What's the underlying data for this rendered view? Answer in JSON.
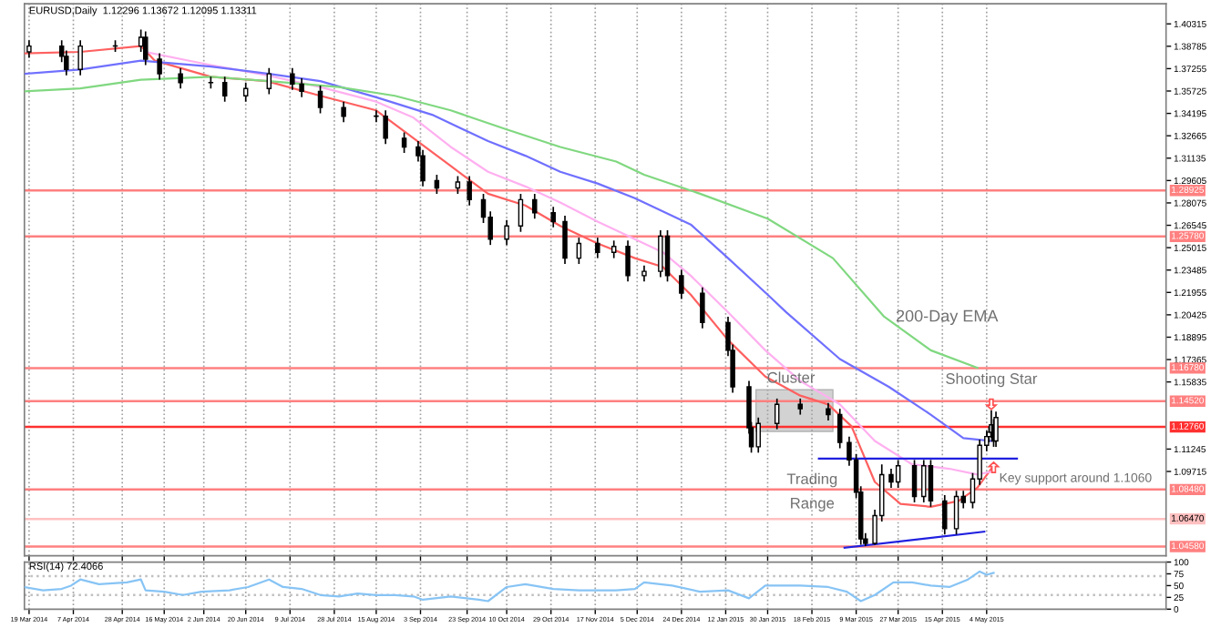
{
  "chart_data": [
    {
      "type": "candlestick",
      "title": "EURUSD,Daily  1.12296 1.13672 1.12095 1.13311",
      "tick_labels": "y",
      "grid": "x",
      "x": [
        "2014-03-19",
        "2014-04-02",
        "2014-04-04",
        "2014-04-10",
        "2014-04-25",
        "2014-05-06",
        "2014-05-08",
        "2014-05-14",
        "2014-05-23",
        "2014-06-05",
        "2014-06-11",
        "2014-06-20",
        "2014-06-30",
        "2014-07-10",
        "2014-07-14",
        "2014-07-22",
        "2014-08-01",
        "2014-08-15",
        "2014-08-19",
        "2014-08-27",
        "2014-09-02",
        "2014-09-04",
        "2014-09-10",
        "2014-09-19",
        "2014-09-24",
        "2014-09-30",
        "2014-10-03",
        "2014-10-10",
        "2014-10-16",
        "2014-10-22",
        "2014-10-30",
        "2014-11-04",
        "2014-11-10",
        "2014-11-18",
        "2014-11-25",
        "2014-12-01",
        "2014-12-08",
        "2014-12-15",
        "2014-12-18",
        "2014-12-24",
        "2015-01-02",
        "2015-01-13",
        "2015-01-15",
        "2015-01-22",
        "2015-01-23",
        "2015-01-26",
        "2015-02-03",
        "2015-02-13",
        "2015-02-25",
        "2015-03-02",
        "2015-03-06",
        "2015-03-09",
        "2015-03-11",
        "2015-03-13",
        "2015-03-17",
        "2015-03-20",
        "2015-03-24",
        "2015-03-27",
        "2015-04-03",
        "2015-04-07",
        "2015-04-10",
        "2015-04-16",
        "2015-04-21",
        "2015-04-24",
        "2015-04-28",
        "2015-05-01",
        "2015-05-04",
        "2015-05-05",
        "2015-05-06",
        "2015-05-07",
        "2015-05-08"
      ],
      "ohlc": [
        [
          1.384,
          1.392,
          1.38,
          1.388
        ],
        [
          1.388,
          1.392,
          1.377,
          1.381
        ],
        [
          1.381,
          1.385,
          1.368,
          1.372
        ],
        [
          1.372,
          1.392,
          1.368,
          1.388
        ],
        [
          1.388,
          1.392,
          1.384,
          1.388
        ],
        [
          1.388,
          1.3993,
          1.384,
          1.394
        ],
        [
          1.394,
          1.398,
          1.375,
          1.379
        ],
        [
          1.379,
          1.383,
          1.365,
          1.369
        ],
        [
          1.369,
          1.373,
          1.359,
          1.363
        ],
        [
          1.363,
          1.367,
          1.359,
          1.363
        ],
        [
          1.363,
          1.367,
          1.35,
          1.354
        ],
        [
          1.354,
          1.363,
          1.35,
          1.359
        ],
        [
          1.359,
          1.373,
          1.355,
          1.369
        ],
        [
          1.369,
          1.373,
          1.358,
          1.362
        ],
        [
          1.362,
          1.366,
          1.353,
          1.357
        ],
        [
          1.357,
          1.361,
          1.342,
          1.346
        ],
        [
          1.346,
          1.35,
          1.336,
          1.34
        ],
        [
          1.34,
          1.344,
          1.336,
          1.34
        ],
        [
          1.34,
          1.344,
          1.321,
          1.325
        ],
        [
          1.325,
          1.329,
          1.315,
          1.319
        ],
        [
          1.319,
          1.323,
          1.309,
          1.313
        ],
        [
          1.313,
          1.317,
          1.292,
          1.296
        ],
        [
          1.296,
          1.3,
          1.287,
          1.291
        ],
        [
          1.291,
          1.299,
          1.287,
          1.295
        ],
        [
          1.295,
          1.299,
          1.279,
          1.283
        ],
        [
          1.283,
          1.287,
          1.267,
          1.271
        ],
        [
          1.271,
          1.275,
          1.252,
          1.256
        ],
        [
          1.256,
          1.269,
          1.252,
          1.265
        ],
        [
          1.265,
          1.287,
          1.261,
          1.283
        ],
        [
          1.283,
          1.287,
          1.27,
          1.274
        ],
        [
          1.274,
          1.278,
          1.264,
          1.268
        ],
        [
          1.268,
          1.272,
          1.239,
          1.243
        ],
        [
          1.243,
          1.257,
          1.239,
          1.253
        ],
        [
          1.253,
          1.257,
          1.243,
          1.247
        ],
        [
          1.247,
          1.255,
          1.243,
          1.251
        ],
        [
          1.251,
          1.255,
          1.227,
          1.231
        ],
        [
          1.231,
          1.238,
          1.227,
          1.234
        ],
        [
          1.234,
          1.262,
          1.23,
          1.258
        ],
        [
          1.258,
          1.262,
          1.227,
          1.231
        ],
        [
          1.231,
          1.235,
          1.215,
          1.219
        ],
        [
          1.219,
          1.223,
          1.195,
          1.199
        ],
        [
          1.199,
          1.203,
          1.176,
          1.18
        ],
        [
          1.18,
          1.184,
          1.151,
          1.155
        ],
        [
          1.155,
          1.159,
          1.123,
          1.127
        ],
        [
          1.127,
          1.131,
          1.11,
          1.114
        ],
        [
          1.114,
          1.134,
          1.11,
          1.13
        ],
        [
          1.13,
          1.147,
          1.126,
          1.143
        ],
        [
          1.143,
          1.147,
          1.136,
          1.14
        ],
        [
          1.14,
          1.144,
          1.132,
          1.136
        ],
        [
          1.136,
          1.14,
          1.113,
          1.117
        ],
        [
          1.117,
          1.121,
          1.101,
          1.105
        ],
        [
          1.105,
          1.109,
          1.079,
          1.083
        ],
        [
          1.083,
          1.087,
          1.047,
          1.051
        ],
        [
          1.051,
          1.055,
          1.0462,
          1.048
        ],
        [
          1.048,
          1.071,
          1.047,
          1.067
        ],
        [
          1.067,
          1.102,
          1.063,
          1.095
        ],
        [
          1.095,
          1.099,
          1.086,
          1.09
        ],
        [
          1.09,
          1.105,
          1.086,
          1.101
        ],
        [
          1.101,
          1.105,
          1.076,
          1.08
        ],
        [
          1.08,
          1.105,
          1.076,
          1.101
        ],
        [
          1.101,
          1.105,
          1.073,
          1.077
        ],
        [
          1.077,
          1.081,
          1.054,
          1.058
        ],
        [
          1.058,
          1.084,
          1.054,
          1.08
        ],
        [
          1.08,
          1.084,
          1.072,
          1.076
        ],
        [
          1.076,
          1.096,
          1.072,
          1.092
        ],
        [
          1.092,
          1.119,
          1.088,
          1.115
        ],
        [
          1.115,
          1.125,
          1.111,
          1.121
        ],
        [
          1.121,
          1.128,
          1.117,
          1.124
        ],
        [
          1.124,
          1.139,
          1.12,
          1.129
        ],
        [
          1.129,
          1.133,
          1.114,
          1.118
        ],
        [
          1.118,
          1.138,
          1.114,
          1.134
        ]
      ],
      "series": [
        {
          "type": "line",
          "color": "#ff6060",
          "x": [
            "2014-03-17",
            "2014-04-10",
            "2014-05-06",
            "2014-05-12",
            "2014-06-05",
            "2014-06-29",
            "2014-07-22",
            "2014-08-15",
            "2014-08-31",
            "2014-09-16",
            "2014-10-02",
            "2014-10-18",
            "2014-11-02",
            "2014-11-18",
            "2014-12-04",
            "2014-12-16",
            "2014-12-28",
            "2015-01-13",
            "2015-01-29",
            "2015-02-13",
            "2015-02-25",
            "2015-03-07",
            "2015-03-17",
            "2015-03-28",
            "2015-04-10",
            "2015-04-22",
            "2015-04-30",
            "2015-05-06"
          ],
          "values": [
            1.383,
            1.384,
            1.388,
            1.378,
            1.367,
            1.364,
            1.354,
            1.344,
            1.325,
            1.306,
            1.287,
            1.279,
            1.265,
            1.253,
            1.243,
            1.237,
            1.218,
            1.187,
            1.162,
            1.149,
            1.143,
            1.128,
            1.09,
            1.075,
            1.073,
            1.077,
            1.086,
            1.099
          ]
        },
        {
          "type": "line",
          "color": "#ffb0f0",
          "x": [
            "2014-05-08",
            "2014-06-05",
            "2014-06-29",
            "2014-07-22",
            "2014-08-15",
            "2014-08-31",
            "2014-09-16",
            "2014-10-02",
            "2014-10-18",
            "2014-11-02",
            "2014-11-18",
            "2014-12-04",
            "2014-12-16",
            "2014-12-28",
            "2015-01-13",
            "2015-01-29",
            "2015-02-13",
            "2015-03-02",
            "2015-03-17",
            "2015-04-02",
            "2015-04-18",
            "2015-04-30",
            "2015-05-06"
          ],
          "values": [
            1.384,
            1.375,
            1.368,
            1.36,
            1.35,
            1.339,
            1.319,
            1.302,
            1.292,
            1.281,
            1.268,
            1.256,
            1.247,
            1.231,
            1.206,
            1.18,
            1.159,
            1.143,
            1.118,
            1.102,
            1.099,
            1.095,
            1.097
          ]
        },
        {
          "type": "line",
          "color": "#7070ff",
          "x": [
            "2014-03-17",
            "2014-04-10",
            "2014-05-06",
            "2014-06-05",
            "2014-06-30",
            "2014-07-22",
            "2014-08-15",
            "2014-09-08",
            "2014-10-02",
            "2014-10-18",
            "2014-11-02",
            "2014-11-18",
            "2014-12-04",
            "2014-12-16",
            "2014-12-28",
            "2015-01-13",
            "2015-01-30",
            "2015-02-07",
            "2015-03-02",
            "2015-03-23",
            "2015-04-10",
            "2015-04-24",
            "2015-05-06"
          ],
          "values": [
            1.369,
            1.372,
            1.378,
            1.374,
            1.369,
            1.364,
            1.353,
            1.341,
            1.323,
            1.313,
            1.302,
            1.294,
            1.284,
            1.275,
            1.266,
            1.243,
            1.218,
            1.206,
            1.174,
            1.155,
            1.136,
            1.12,
            1.118
          ]
        },
        {
          "type": "line",
          "color": "#80d880",
          "name": "200-Day EMA",
          "x": [
            "2014-03-17",
            "2014-04-10",
            "2014-05-06",
            "2014-06-05",
            "2014-06-30",
            "2014-07-30",
            "2014-08-23",
            "2014-09-16",
            "2014-10-10",
            "2014-11-02",
            "2014-11-26",
            "2014-12-08",
            "2015-01-01",
            "2015-01-30",
            "2015-02-27",
            "2015-03-21",
            "2015-04-10",
            "2015-04-30"
          ],
          "values": [
            1.357,
            1.359,
            1.365,
            1.367,
            1.364,
            1.36,
            1.354,
            1.344,
            1.331,
            1.319,
            1.309,
            1.3,
            1.287,
            1.27,
            1.243,
            1.203,
            1.18,
            1.168
          ]
        },
        {
          "type": "line",
          "color": "#2020e0",
          "x": [
            "2015-02-21",
            "2015-05-17"
          ],
          "values": [
            1.106,
            1.106
          ]
        },
        {
          "type": "line",
          "color": "#2020e0",
          "x": [
            "2015-03-04",
            "2015-05-03"
          ],
          "values": [
            1.045,
            1.056
          ]
        }
      ],
      "ref_lines": [
        {
          "axis": "y",
          "value": 1.28925,
          "label": "1.28925",
          "color": "#ff8080"
        },
        {
          "axis": "y",
          "value": 1.2578,
          "label": "1.25780",
          "color": "#ff8080"
        },
        {
          "axis": "y",
          "value": 1.1678,
          "label": "1.16780",
          "color": "#ff8080"
        },
        {
          "axis": "y",
          "value": 1.1452,
          "label": "1.14520",
          "color": "#ff8080"
        },
        {
          "axis": "y",
          "value": 1.1276,
          "label": "1.12760",
          "color": "#ff3030"
        },
        {
          "axis": "y",
          "value": 1.0848,
          "label": "1.08480",
          "color": "#ff8080"
        },
        {
          "axis": "y",
          "value": 1.0647,
          "label": "1.06470",
          "color": "#ffc0c0"
        },
        {
          "axis": "y",
          "value": 1.0458,
          "label": "1.04580",
          "color": "#ff8080"
        }
      ],
      "annotations": [
        {
          "text": "Cluster",
          "x": "2015-02-09",
          "y": 1.1605
        },
        {
          "text": "Shooting Star",
          "x": "2015-05-06",
          "y": 1.139
        },
        {
          "text": "Key support around 1.1060",
          "x": "2015-05-17",
          "y": 1.106
        },
        "Trading",
        "Range"
      ],
      "xlim": [
        "2014-03-17",
        "2015-07-20"
      ],
      "xticks": [
        {
          "value": "2014-03-19",
          "label": null
        },
        {
          "value": "2014-04-07",
          "label": null
        },
        {
          "value": "2014-04-28",
          "label": null
        },
        {
          "value": "2014-05-16",
          "label": null
        },
        {
          "value": "2014-06-02",
          "label": null
        },
        {
          "value": "2014-06-20",
          "label": null
        },
        {
          "value": "2014-07-09",
          "label": null
        },
        {
          "value": "2014-07-28",
          "label": null
        },
        {
          "value": "2014-08-15",
          "label": null
        },
        {
          "value": "2014-09-03",
          "label": null
        },
        {
          "value": "2014-09-23",
          "label": null
        },
        {
          "value": "2014-10-10",
          "label": null
        },
        {
          "value": "2014-10-29",
          "label": null
        },
        {
          "value": "2014-11-17",
          "label": null
        },
        {
          "value": "2014-12-05",
          "label": null
        },
        {
          "value": "2014-12-24",
          "label": null
        },
        {
          "value": "2015-01-12",
          "label": null
        },
        {
          "value": "2015-01-30",
          "label": null
        },
        {
          "value": "2015-02-18",
          "label": null
        },
        {
          "value": "2015-03-09",
          "label": null
        },
        {
          "value": "2015-03-27",
          "label": null
        },
        {
          "value": "2015-04-15",
          "label": null
        },
        {
          "value": "2015-05-04",
          "label": null
        }
      ],
      "ylim": [
        1.0395,
        1.4169
      ],
      "yticks": [
        1.40315,
        1.38785,
        1.37255,
        1.35725,
        1.34195,
        1.32665,
        1.31135,
        1.29605,
        1.28075,
        1.26545,
        1.25015,
        1.23485,
        1.21955,
        1.20425,
        1.18895,
        1.17365,
        1.15835,
        1.11245,
        1.09715
      ]
    },
    {
      "type": "line",
      "title": "RSI(14) 72.4066",
      "grid": "x",
      "series": [
        {
          "color": "#87c4f5",
          "x": [
            "2014-03-17",
            "2014-03-25",
            "2014-04-02",
            "2014-04-06",
            "2014-04-10",
            "2014-04-18",
            "2014-04-30",
            "2014-05-06",
            "2014-05-08",
            "2014-05-16",
            "2014-05-24",
            "2014-06-01",
            "2014-06-13",
            "2014-06-21",
            "2014-06-30",
            "2014-07-06",
            "2014-07-14",
            "2014-07-22",
            "2014-07-30",
            "2014-08-07",
            "2014-08-15",
            "2014-08-23",
            "2014-08-31",
            "2014-09-04",
            "2014-09-16",
            "2014-09-28",
            "2014-10-02",
            "2014-10-10",
            "2014-10-18",
            "2014-10-30",
            "2014-11-10",
            "2014-11-26",
            "2014-12-04",
            "2014-12-08",
            "2014-12-20",
            "2015-01-01",
            "2015-01-13",
            "2015-01-22",
            "2015-01-29",
            "2015-02-13",
            "2015-02-25",
            "2015-03-05",
            "2015-03-11",
            "2015-03-17",
            "2015-03-25",
            "2015-04-02",
            "2015-04-10",
            "2015-04-18",
            "2015-04-26",
            "2015-05-01",
            "2015-05-04",
            "2015-05-07"
          ],
          "values": [
            47,
            40,
            43,
            50,
            63,
            53,
            57,
            63,
            40,
            37,
            30,
            37,
            40,
            47,
            63,
            47,
            43,
            30,
            27,
            33,
            30,
            30,
            27,
            20,
            27,
            20,
            17,
            47,
            53,
            43,
            40,
            40,
            43,
            57,
            50,
            37,
            40,
            23,
            50,
            50,
            47,
            37,
            17,
            30,
            57,
            57,
            50,
            47,
            63,
            80,
            73,
            77
          ]
        }
      ],
      "ref_lines": [
        {
          "axis": "y",
          "value": 70,
          "color": "#c0c0c0",
          "line_style": "dotted"
        },
        {
          "axis": "y",
          "value": 30,
          "color": "#c0c0c0",
          "line_style": "dotted"
        }
      ],
      "xlim": [
        "2014-03-17",
        "2015-07-20"
      ],
      "xticks": [
        {
          "value": "2014-03-19",
          "label": "19 Mar 2014"
        },
        {
          "value": "2014-04-07",
          "label": "7 Apr 2014"
        },
        {
          "value": "2014-04-28",
          "label": "28 Apr 2014"
        },
        {
          "value": "2014-05-16",
          "label": "16 May 2014"
        },
        {
          "value": "2014-06-02",
          "label": "2 Jun 2014"
        },
        {
          "value": "2014-06-20",
          "label": "20 Jun 2014"
        },
        {
          "value": "2014-07-09",
          "label": "9 Jul 2014"
        },
        {
          "value": "2014-07-28",
          "label": "28 Jul 2014"
        },
        {
          "value": "2014-08-15",
          "label": "15 Aug 2014"
        },
        {
          "value": "2014-09-03",
          "label": "3 Sep 2014"
        },
        {
          "value": "2014-09-23",
          "label": "23 Sep 2014"
        },
        {
          "value": "2014-10-10",
          "label": "10 Oct 2014"
        },
        {
          "value": "2014-10-29",
          "label": "29 Oct 2014"
        },
        {
          "value": "2014-11-17",
          "label": "17 Nov 2014"
        },
        {
          "value": "2014-12-05",
          "label": "5 Dec 2014"
        },
        {
          "value": "2014-12-24",
          "label": "24 Dec 2014"
        },
        {
          "value": "2015-01-12",
          "label": "12 Jan 2015"
        },
        {
          "value": "2015-01-30",
          "label": "30 Jan 2015"
        },
        {
          "value": "2015-02-18",
          "label": "18 Feb 2015"
        },
        {
          "value": "2015-03-09",
          "label": "9 Mar 2015"
        },
        {
          "value": "2015-03-27",
          "label": "27 Mar 2015"
        },
        {
          "value": "2015-04-15",
          "label": "15 Apr 2015"
        },
        {
          "value": "2015-05-04",
          "label": "4 May 2015"
        }
      ],
      "ylim": [
        0,
        100
      ],
      "yticks": [
        0,
        25,
        50,
        75,
        100
      ]
    }
  ]
}
